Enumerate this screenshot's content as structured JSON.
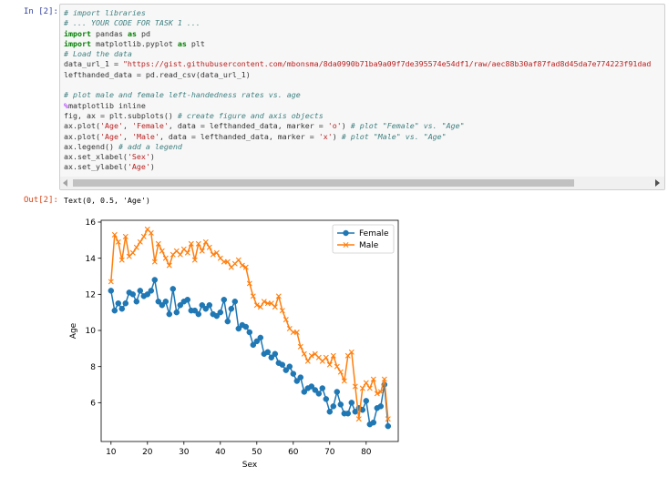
{
  "input_prompt": "In [2]:",
  "output_prompt": "Out[2]:",
  "code_lines": [
    [
      [
        "cm",
        "# import libraries"
      ]
    ],
    [
      [
        "cm",
        "# ... YOUR CODE FOR TASK 1 ..."
      ]
    ],
    [
      [
        "kw",
        "import"
      ],
      [
        "t",
        " pandas "
      ],
      [
        "kw",
        "as"
      ],
      [
        "t",
        " pd"
      ]
    ],
    [
      [
        "kw",
        "import"
      ],
      [
        "t",
        " matplotlib.pyplot "
      ],
      [
        "kw",
        "as"
      ],
      [
        "t",
        " plt"
      ]
    ],
    [
      [
        "cm",
        "# Load the data"
      ]
    ],
    [
      [
        "t",
        "data_url_1 = "
      ],
      [
        "st",
        "\"https://gist.githubusercontent.com/mbonsma/8da0990b71ba9a09f7de395574e54df1/raw/aec88b30af87fad8d45da7e774223f91dad"
      ]
    ],
    [
      [
        "t",
        "lefthanded_data = pd.read_csv(data_url_1)"
      ]
    ],
    [
      [
        "t",
        ""
      ]
    ],
    [
      [
        "cm",
        "# plot male and female left-handedness rates vs. age"
      ]
    ],
    [
      [
        "mg",
        "%"
      ],
      [
        "t",
        "matplotlib inline"
      ]
    ],
    [
      [
        "t",
        "fig, ax = plt.subplots() "
      ],
      [
        "cm",
        "# create figure and axis objects"
      ]
    ],
    [
      [
        "t",
        "ax.plot("
      ],
      [
        "st",
        "'Age'"
      ],
      [
        "t",
        ", "
      ],
      [
        "st",
        "'Female'"
      ],
      [
        "t",
        ", data = lefthanded_data, marker = "
      ],
      [
        "st",
        "'o'"
      ],
      [
        "t",
        ") "
      ],
      [
        "cm",
        "# plot \"Female\" vs. \"Age\""
      ]
    ],
    [
      [
        "t",
        "ax.plot("
      ],
      [
        "st",
        "'Age'"
      ],
      [
        "t",
        ", "
      ],
      [
        "st",
        "'Male'"
      ],
      [
        "t",
        ", data = lefthanded_data, marker = "
      ],
      [
        "st",
        "'x'"
      ],
      [
        "t",
        ") "
      ],
      [
        "cm",
        "# plot \"Male\" vs. \"Age\""
      ]
    ],
    [
      [
        "t",
        "ax.legend() "
      ],
      [
        "cm",
        "# add a legend"
      ]
    ],
    [
      [
        "t",
        "ax.set_xlabel("
      ],
      [
        "st",
        "'Sex'"
      ],
      [
        "t",
        ")"
      ]
    ],
    [
      [
        "t",
        "ax.set_ylabel("
      ],
      [
        "st",
        "'Age'"
      ],
      [
        "t",
        ")"
      ]
    ]
  ],
  "output_text": "Text(0, 0.5, 'Age')",
  "colors": {
    "female": "#1f77b4",
    "male": "#ff7f0e"
  },
  "chart_data": {
    "type": "line",
    "xlabel": "Sex",
    "ylabel": "Age",
    "xlim": [
      7.3,
      88.8
    ],
    "ylim": [
      3.85,
      16.1
    ],
    "xticks": [
      10,
      20,
      30,
      40,
      50,
      60,
      70,
      80
    ],
    "yticks": [
      6,
      8,
      10,
      12,
      14,
      16
    ],
    "legend_position": "top-right",
    "x": [
      10,
      11,
      12,
      13,
      14,
      15,
      16,
      17,
      18,
      19,
      20,
      21,
      22,
      23,
      24,
      25,
      26,
      27,
      28,
      29,
      30,
      31,
      32,
      33,
      34,
      35,
      36,
      37,
      38,
      39,
      40,
      41,
      42,
      43,
      44,
      45,
      46,
      47,
      48,
      49,
      50,
      51,
      52,
      53,
      54,
      55,
      56,
      57,
      58,
      59,
      60,
      61,
      62,
      63,
      64,
      65,
      66,
      67,
      68,
      69,
      70,
      71,
      72,
      73,
      74,
      75,
      76,
      77,
      78,
      79,
      80,
      81,
      82,
      83,
      84,
      85,
      86
    ],
    "series": [
      {
        "name": "Female",
        "marker": "o",
        "values": [
          12.2,
          11.1,
          11.5,
          11.2,
          11.5,
          12.1,
          12.0,
          11.6,
          12.2,
          11.9,
          12.0,
          12.2,
          12.8,
          11.6,
          11.4,
          11.6,
          10.9,
          12.3,
          11.0,
          11.4,
          11.6,
          11.7,
          11.1,
          11.1,
          10.9,
          11.4,
          11.2,
          11.4,
          10.9,
          10.8,
          11.0,
          11.7,
          10.5,
          11.2,
          11.6,
          10.1,
          10.3,
          10.2,
          9.9,
          9.2,
          9.4,
          9.6,
          8.7,
          8.8,
          8.5,
          8.7,
          8.2,
          8.1,
          7.8,
          8.0,
          7.6,
          7.2,
          7.4,
          6.6,
          6.8,
          6.9,
          6.7,
          6.5,
          6.8,
          6.2,
          5.5,
          5.8,
          6.6,
          5.9,
          5.4,
          5.4,
          6.0,
          5.5,
          5.7,
          5.6,
          6.1,
          4.8,
          4.9,
          5.7,
          5.8,
          7.0,
          4.7
        ]
      },
      {
        "name": "Male",
        "marker": "x",
        "values": [
          12.7,
          15.3,
          14.9,
          13.9,
          15.2,
          14.1,
          14.3,
          14.6,
          14.9,
          15.2,
          15.6,
          15.4,
          13.8,
          14.8,
          14.4,
          14.0,
          13.6,
          14.2,
          14.4,
          14.2,
          14.5,
          14.3,
          14.8,
          13.9,
          14.8,
          14.4,
          14.9,
          14.6,
          14.2,
          14.3,
          14.0,
          13.8,
          13.8,
          13.5,
          13.7,
          13.9,
          13.6,
          13.5,
          12.6,
          11.9,
          11.4,
          11.3,
          11.6,
          11.5,
          11.5,
          11.3,
          11.9,
          11.1,
          10.6,
          10.1,
          9.9,
          9.9,
          9.1,
          8.7,
          8.3,
          8.6,
          8.7,
          8.5,
          8.3,
          8.5,
          8.1,
          8.6,
          8.0,
          7.7,
          7.2,
          8.6,
          8.8,
          6.9,
          5.1,
          6.8,
          7.1,
          6.8,
          7.3,
          6.5,
          6.6,
          7.3,
          5.1
        ]
      }
    ]
  }
}
